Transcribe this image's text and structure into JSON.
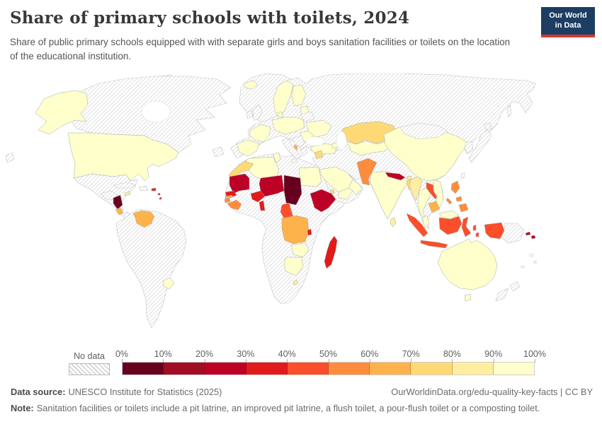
{
  "header": {
    "title": "Share of primary schools with toilets, 2024",
    "subtitle": "Share of public primary schools equipped with with separate girls and boys sanitation facilities or toilets on the location of the educational institution.",
    "logo": {
      "line1": "Our World",
      "line2": "in Data",
      "bg": "#1d3d63",
      "accent": "#d13832"
    }
  },
  "legend": {
    "no_data_label": "No data",
    "tick_labels": [
      "0%",
      "10%",
      "20%",
      "30%",
      "40%",
      "50%",
      "60%",
      "70%",
      "80%",
      "90%",
      "100%"
    ],
    "bin_colors": [
      "#67001f",
      "#a00d24",
      "#bd0026",
      "#e31a1c",
      "#fc4e2a",
      "#fd8d3c",
      "#feb24c",
      "#fed976",
      "#ffeda0",
      "#ffffcc"
    ]
  },
  "footer": {
    "source_label": "Data source:",
    "source_text": "UNESCO Institute for Statistics (2025)",
    "link_text": "OurWorldinData.org/edu-quality-key-facts | CC BY",
    "note_label": "Note:",
    "note_text": "Sanitation facilities or toilets include a pit latrine, an improved pit latrine, a flush toilet, a pour-flush toilet or a composting toilet."
  },
  "chart_data": {
    "type": "heatmap",
    "subtype": "choropleth-world-map",
    "title": "Share of primary schools with toilets, 2024",
    "unit": "%",
    "legend_bins": [
      {
        "range": "0-10%",
        "color": "#67001f"
      },
      {
        "range": "10-20%",
        "color": "#a00d24"
      },
      {
        "range": "20-30%",
        "color": "#bd0026"
      },
      {
        "range": "30-40%",
        "color": "#e31a1c"
      },
      {
        "range": "40-50%",
        "color": "#fc4e2a"
      },
      {
        "range": "50-60%",
        "color": "#fd8d3c"
      },
      {
        "range": "60-70%",
        "color": "#feb24c"
      },
      {
        "range": "70-80%",
        "color": "#fed976"
      },
      {
        "range": "80-90%",
        "color": "#ffeda0"
      },
      {
        "range": "90-100%",
        "color": "#ffffcc"
      }
    ],
    "no_data": {
      "label": "No data",
      "style": "hatched"
    },
    "countries": {
      "alaska": {
        "name": "United States (Alaska)",
        "bin": "90-100%",
        "color": "#ffffcc"
      },
      "usa": {
        "name": "United States",
        "bin": "90-100%",
        "color": "#ffffcc"
      },
      "jamaica": {
        "name": "Jamaica",
        "bin": "80-90%",
        "color": "#ffeda0"
      },
      "puerto-rico": {
        "name": "Puerto Rico",
        "bin": "30-40%",
        "color": "#e31a1c"
      },
      "antilles": {
        "name": "Lesser Antilles",
        "bin": "30-40%",
        "color": "#e31a1c"
      },
      "nicaragua": {
        "name": "Nicaragua",
        "bin": "0-10%",
        "color": "#67001f"
      },
      "costa-rica": {
        "name": "Costa Rica",
        "bin": "60-70%",
        "color": "#feb24c"
      },
      "venezuela": {
        "name": "Venezuela",
        "bin": "60-70%",
        "color": "#feb24c"
      },
      "uruguay": {
        "name": "Uruguay",
        "bin": "90-100%",
        "color": "#ffffcc"
      },
      "iceland": {
        "name": "Iceland",
        "bin": "90-100%",
        "color": "#ffffcc"
      },
      "norway-sweden": {
        "name": "Norway / Sweden",
        "bin": "90-100%",
        "color": "#ffffcc"
      },
      "finland": {
        "name": "Finland",
        "bin": "90-100%",
        "color": "#ffffcc"
      },
      "denmark": {
        "name": "Denmark",
        "bin": "90-100%",
        "color": "#ffffcc"
      },
      "baltics": {
        "name": "Baltic states",
        "bin": "90-100%",
        "color": "#ffffcc"
      },
      "france": {
        "name": "France",
        "bin": "90-100%",
        "color": "#ffffcc"
      },
      "iberia": {
        "name": "Spain / Portugal",
        "bin": "90-100%",
        "color": "#ffffcc"
      },
      "central-europe": {
        "name": "Germany / Poland",
        "bin": "90-100%",
        "color": "#ffffcc"
      },
      "romania": {
        "name": "Romania / Bulgaria",
        "bin": "90-100%",
        "color": "#ffffcc"
      },
      "ukraine": {
        "name": "Ukraine",
        "bin": "90-100%",
        "color": "#ffffcc"
      },
      "albania": {
        "name": "Albania",
        "bin": "60-70%",
        "color": "#feb24c"
      },
      "turkey": {
        "name": "Turkey",
        "bin": "90-100%",
        "color": "#ffffcc"
      },
      "caucasus": {
        "name": "Caucasus states",
        "bin": "90-100%",
        "color": "#ffffcc"
      },
      "syria": {
        "name": "Syria",
        "bin": "70-80%",
        "color": "#fed976"
      },
      "saudi": {
        "name": "Saudi Arabia",
        "bin": "90-100%",
        "color": "#ffffcc"
      },
      "yemen": {
        "name": "Yemen",
        "bin": "90-100%",
        "color": "#ffffcc"
      },
      "oman": {
        "name": "Oman",
        "bin": "90-100%",
        "color": "#ffffcc"
      },
      "kazakhstan": {
        "name": "Kazakhstan",
        "bin": "70-80%",
        "color": "#fed976"
      },
      "central-asia": {
        "name": "Uzbekistan / Turkmenistan / Kyrgyzstan",
        "bin": "90-100%",
        "color": "#ffffcc"
      },
      "pakistan": {
        "name": "Pakistan",
        "bin": "50-60%",
        "color": "#fd8d3c"
      },
      "india": {
        "name": "India",
        "bin": "90-100%",
        "color": "#ffffcc"
      },
      "nepal": {
        "name": "Nepal",
        "bin": "20-30%",
        "color": "#bd0026"
      },
      "bhutan": {
        "name": "Bhutan",
        "bin": "80-90%",
        "color": "#ffeda0"
      },
      "bangladesh": {
        "name": "Bangladesh",
        "bin": "70-80%",
        "color": "#fed976"
      },
      "sri-lanka": {
        "name": "Sri Lanka",
        "bin": "80-90%",
        "color": "#ffeda0"
      },
      "china": {
        "name": "China",
        "bin": "90-100%",
        "color": "#ffffcc"
      },
      "myanmar": {
        "name": "Myanmar",
        "bin": "80-90%",
        "color": "#ffeda0"
      },
      "thailand": {
        "name": "Thailand",
        "bin": "90-100%",
        "color": "#ffffcc"
      },
      "laos": {
        "name": "Laos",
        "bin": "40-50%",
        "color": "#fc4e2a"
      },
      "vietnam": {
        "name": "Vietnam",
        "bin": "90-100%",
        "color": "#ffffcc"
      },
      "cambodia": {
        "name": "Cambodia",
        "bin": "60-70%",
        "color": "#feb24c"
      },
      "malaysia": {
        "name": "Malaysia",
        "bin": "90-100%",
        "color": "#ffffcc"
      },
      "indonesia": {
        "name": "Indonesia",
        "bin": "40-50%",
        "color": "#fc4e2a"
      },
      "philippines": {
        "name": "Philippines",
        "bin": "50-60%",
        "color": "#fd8d3c"
      },
      "solomon": {
        "name": "Solomon Islands",
        "bin": "20-30%",
        "color": "#bd0026"
      },
      "australia": {
        "name": "Australia",
        "bin": "90-100%",
        "color": "#ffffcc"
      },
      "morocco": {
        "name": "Morocco",
        "bin": "70-80%",
        "color": "#fed976"
      },
      "algeria": {
        "name": "Algeria",
        "bin": "90-100%",
        "color": "#ffffcc"
      },
      "tunisia": {
        "name": "Tunisia",
        "bin": "90-100%",
        "color": "#ffffcc"
      },
      "egypt": {
        "name": "Egypt",
        "bin": "90-100%",
        "color": "#ffffcc"
      },
      "mauritania": {
        "name": "Mauritania",
        "bin": "20-30%",
        "color": "#bd0026"
      },
      "senegal": {
        "name": "Senegal",
        "bin": "30-40%",
        "color": "#e31a1c"
      },
      "gambia": {
        "name": "Gambia",
        "bin": "60-70%",
        "color": "#feb24c"
      },
      "guinea-bissau": {
        "name": "Guinea-Bissau",
        "bin": "50-60%",
        "color": "#fd8d3c"
      },
      "guinea": {
        "name": "Guinea",
        "bin": "50-60%",
        "color": "#fd8d3c"
      },
      "burkina-faso": {
        "name": "Burkina Faso",
        "bin": "30-40%",
        "color": "#e31a1c"
      },
      "niger": {
        "name": "Niger",
        "bin": "20-30%",
        "color": "#bd0026"
      },
      "chad": {
        "name": "Chad",
        "bin": "0-10%",
        "color": "#67001f"
      },
      "benin-togo": {
        "name": "Benin / Togo",
        "bin": "30-40%",
        "color": "#e31a1c"
      },
      "cameroon": {
        "name": "Cameroon",
        "bin": "40-50%",
        "color": "#fc4e2a"
      },
      "ethiopia": {
        "name": "Ethiopia",
        "bin": "20-30%",
        "color": "#bd0026"
      },
      "djibouti": {
        "name": "Djibouti",
        "bin": "70-80%",
        "color": "#fed976"
      },
      "drc": {
        "name": "Democratic Republic of Congo",
        "bin": "60-70%",
        "color": "#feb24c"
      },
      "rwanda-burundi": {
        "name": "Rwanda / Burundi",
        "bin": "30-40%",
        "color": "#e31a1c"
      },
      "zambia": {
        "name": "Zambia",
        "bin": "90-100%",
        "color": "#ffffcc"
      },
      "zimbabwe-botswana": {
        "name": "Zimbabwe / Botswana",
        "bin": "90-100%",
        "color": "#ffffcc"
      },
      "lesotho": {
        "name": "Lesotho",
        "bin": "80-90%",
        "color": "#ffeda0"
      },
      "madagascar": {
        "name": "Madagascar",
        "bin": "30-40%",
        "color": "#e31a1c"
      }
    }
  }
}
